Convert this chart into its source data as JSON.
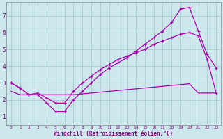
{
  "xlabel": "Windchill (Refroidissement éolien,°C)",
  "bg_color": "#cce8ec",
  "grid_color": "#aaccd4",
  "line_color": "#aa00aa",
  "xlim": [
    -0.5,
    23.5
  ],
  "ylim": [
    0.5,
    7.8
  ],
  "line1_x": [
    0,
    1,
    2,
    3,
    4,
    5,
    6,
    7,
    8,
    9,
    10,
    11,
    12,
    13,
    14,
    15,
    16,
    17,
    18,
    19,
    20,
    21,
    22,
    23
  ],
  "line1_y": [
    3.0,
    2.7,
    2.3,
    2.3,
    1.8,
    1.3,
    1.3,
    2.0,
    2.5,
    3.0,
    3.5,
    3.9,
    4.2,
    4.5,
    4.9,
    5.3,
    5.7,
    6.1,
    6.6,
    7.4,
    7.5,
    6.1,
    4.7,
    3.9
  ],
  "line2_x": [
    0,
    1,
    2,
    3,
    4,
    5,
    6,
    7,
    8,
    9,
    10,
    11,
    12,
    13,
    14,
    15,
    16,
    17,
    18,
    19,
    20,
    21,
    22,
    23
  ],
  "line2_y": [
    3.0,
    2.7,
    2.3,
    2.4,
    2.1,
    1.8,
    1.8,
    2.5,
    3.0,
    3.4,
    3.8,
    4.1,
    4.4,
    4.6,
    4.8,
    5.0,
    5.3,
    5.5,
    5.7,
    5.9,
    6.0,
    5.8,
    4.4,
    2.4
  ],
  "line3_x": [
    0,
    1,
    2,
    3,
    4,
    5,
    6,
    7,
    8,
    9,
    10,
    11,
    12,
    13,
    14,
    15,
    16,
    17,
    18,
    19,
    20,
    21,
    22,
    23
  ],
  "line3_y": [
    2.5,
    2.3,
    2.3,
    2.3,
    2.3,
    2.3,
    2.3,
    2.3,
    2.35,
    2.4,
    2.45,
    2.5,
    2.55,
    2.6,
    2.65,
    2.7,
    2.75,
    2.8,
    2.85,
    2.9,
    2.95,
    2.4,
    2.4,
    2.4
  ]
}
